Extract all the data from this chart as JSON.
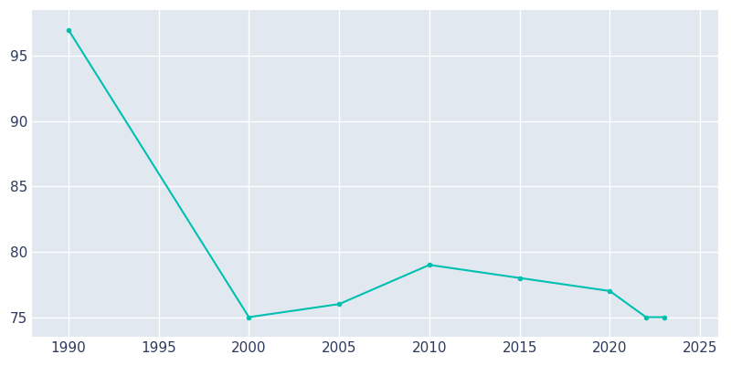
{
  "years": [
    1990,
    2000,
    2005,
    2010,
    2015,
    2020,
    2022,
    2023
  ],
  "population": [
    97,
    75,
    76,
    79,
    78,
    77,
    75,
    75
  ],
  "line_color": "#00C0B0",
  "marker_color": "#00C0B0",
  "plot_background_color": "#E2E8F0",
  "figure_background_color": "#FFFFFF",
  "grid_color": "#FFFFFF",
  "xlim": [
    1988,
    2026
  ],
  "ylim": [
    73.5,
    98.5
  ],
  "xticks": [
    1990,
    1995,
    2000,
    2005,
    2010,
    2015,
    2020,
    2025
  ],
  "yticks": [
    75,
    80,
    85,
    90,
    95
  ],
  "tick_color": "#2E3A5C",
  "tick_labelsize": 11
}
